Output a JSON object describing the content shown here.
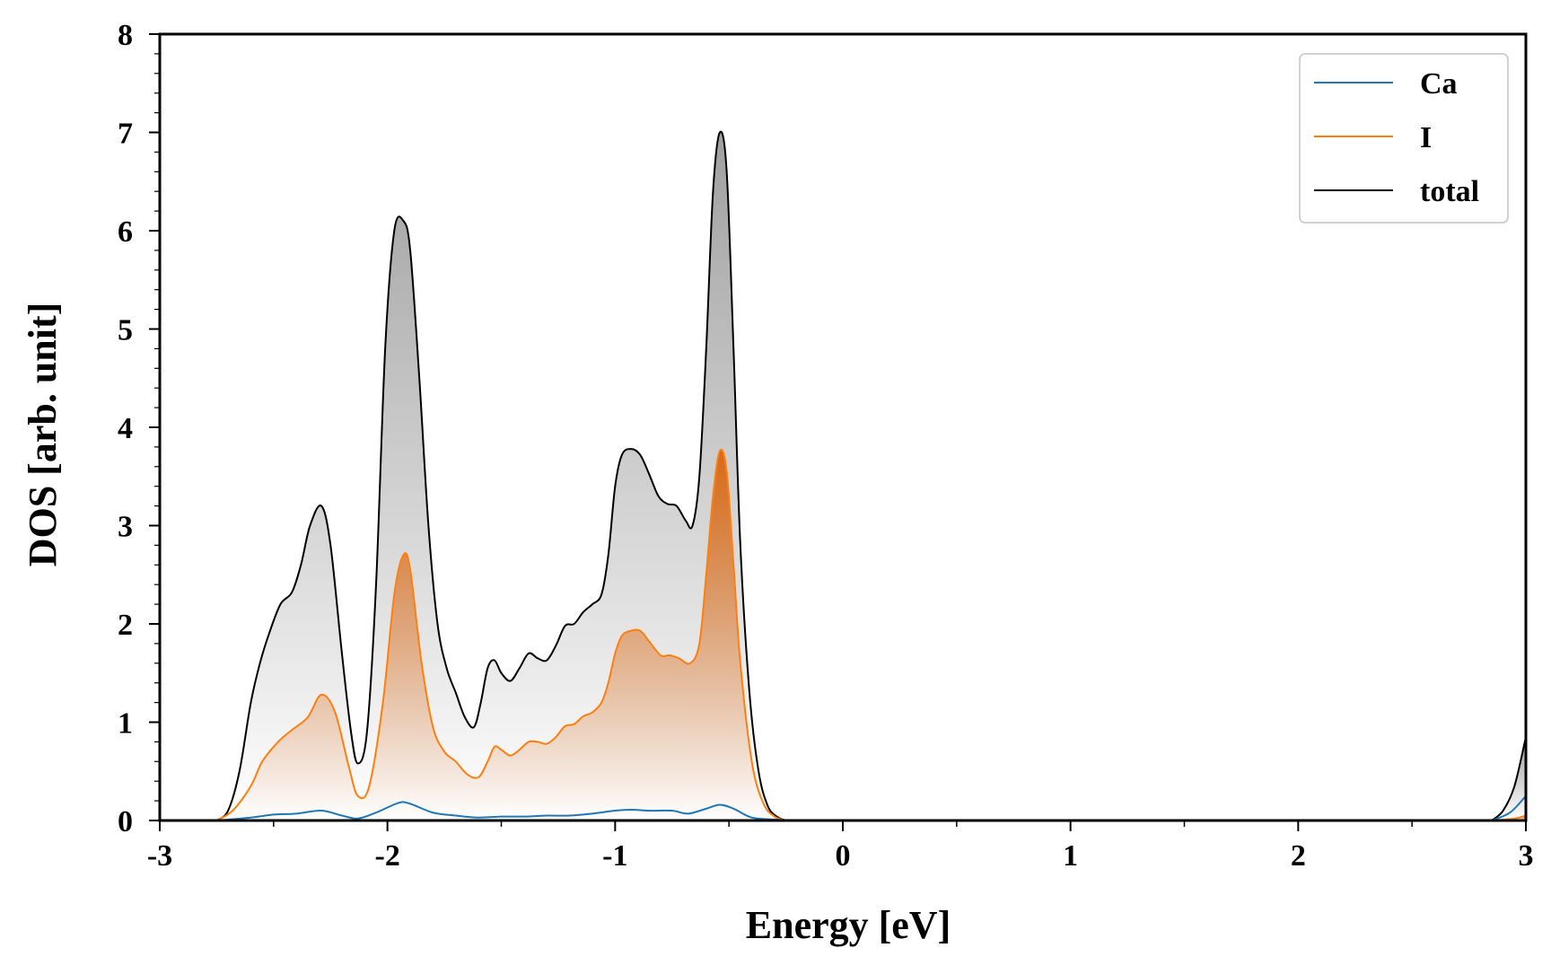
{
  "chart_data": {
    "type": "line",
    "title": "",
    "xlabel": "Energy [eV]",
    "ylabel": "DOS [arb. unit]",
    "xlim": [
      -3,
      3
    ],
    "ylim": [
      0,
      8
    ],
    "xticks": [
      -3,
      -2,
      -1,
      0,
      1,
      2,
      3
    ],
    "yticks": [
      0,
      1,
      2,
      3,
      4,
      5,
      6,
      7,
      8
    ],
    "xtick_labels": [
      "-3",
      "-2",
      "-1",
      "0",
      "1",
      "2",
      "3"
    ],
    "ytick_labels": [
      "0",
      "1",
      "2",
      "3",
      "4",
      "5",
      "6",
      "7",
      "8"
    ],
    "grid": false,
    "legend_position": "top-right",
    "legend": [
      "Ca",
      "I",
      "total"
    ],
    "colors": {
      "Ca": "#1f77b4",
      "I": "#ff7f0e",
      "total": "#000000",
      "total_fill": "#a0a0a0",
      "I_fill": "#e07a20"
    },
    "series": [
      {
        "name": "Ca",
        "x": [
          -2.75,
          -2.6,
          -2.5,
          -2.4,
          -2.29,
          -2.2,
          -2.13,
          -2.05,
          -1.95,
          -1.9,
          -1.8,
          -1.7,
          -1.6,
          -1.5,
          -1.4,
          -1.3,
          -1.2,
          -1.1,
          -1.0,
          -0.93,
          -0.85,
          -0.75,
          -0.68,
          -0.6,
          -0.54,
          -0.48,
          -0.4,
          -0.3,
          -0.25,
          2.85,
          2.93,
          3.0
        ],
        "y": [
          0.0,
          0.03,
          0.06,
          0.07,
          0.1,
          0.05,
          0.02,
          0.08,
          0.18,
          0.17,
          0.08,
          0.05,
          0.03,
          0.04,
          0.04,
          0.05,
          0.05,
          0.07,
          0.1,
          0.11,
          0.1,
          0.1,
          0.07,
          0.12,
          0.16,
          0.12,
          0.03,
          0.01,
          0.0,
          0.0,
          0.08,
          0.25
        ]
      },
      {
        "name": "I",
        "x": [
          -2.75,
          -2.68,
          -2.6,
          -2.55,
          -2.48,
          -2.42,
          -2.35,
          -2.29,
          -2.23,
          -2.17,
          -2.13,
          -2.08,
          -2.02,
          -1.97,
          -1.93,
          -1.9,
          -1.85,
          -1.8,
          -1.75,
          -1.7,
          -1.65,
          -1.6,
          -1.56,
          -1.53,
          -1.5,
          -1.46,
          -1.42,
          -1.38,
          -1.34,
          -1.3,
          -1.26,
          -1.22,
          -1.18,
          -1.14,
          -1.1,
          -1.06,
          -1.03,
          -1.0,
          -0.97,
          -0.93,
          -0.89,
          -0.85,
          -0.8,
          -0.76,
          -0.72,
          -0.67,
          -0.63,
          -0.6,
          -0.57,
          -0.54,
          -0.51,
          -0.48,
          -0.45,
          -0.4,
          -0.35,
          -0.3,
          -0.25,
          2.85,
          2.95,
          3.0
        ],
        "y": [
          0.0,
          0.1,
          0.35,
          0.6,
          0.8,
          0.92,
          1.05,
          1.28,
          1.1,
          0.55,
          0.25,
          0.35,
          1.2,
          2.3,
          2.7,
          2.55,
          1.6,
          0.95,
          0.7,
          0.6,
          0.47,
          0.44,
          0.6,
          0.75,
          0.72,
          0.66,
          0.72,
          0.8,
          0.8,
          0.78,
          0.85,
          0.96,
          0.98,
          1.06,
          1.1,
          1.2,
          1.4,
          1.7,
          1.88,
          1.93,
          1.93,
          1.82,
          1.68,
          1.68,
          1.65,
          1.6,
          1.8,
          2.5,
          3.3,
          3.76,
          3.55,
          2.6,
          1.6,
          0.6,
          0.18,
          0.04,
          0.0,
          0.0,
          0.02,
          0.05
        ]
      },
      {
        "name": "total",
        "x": [
          -2.75,
          -2.7,
          -2.65,
          -2.6,
          -2.56,
          -2.52,
          -2.47,
          -2.42,
          -2.38,
          -2.34,
          -2.29,
          -2.25,
          -2.2,
          -2.16,
          -2.13,
          -2.09,
          -2.05,
          -2.01,
          -1.97,
          -1.93,
          -1.9,
          -1.86,
          -1.82,
          -1.78,
          -1.74,
          -1.7,
          -1.66,
          -1.62,
          -1.59,
          -1.56,
          -1.53,
          -1.5,
          -1.46,
          -1.42,
          -1.38,
          -1.34,
          -1.3,
          -1.26,
          -1.22,
          -1.18,
          -1.14,
          -1.1,
          -1.06,
          -1.03,
          -1.0,
          -0.97,
          -0.93,
          -0.89,
          -0.85,
          -0.81,
          -0.77,
          -0.73,
          -0.69,
          -0.66,
          -0.63,
          -0.6,
          -0.57,
          -0.54,
          -0.51,
          -0.48,
          -0.45,
          -0.41,
          -0.37,
          -0.33,
          -0.29,
          -0.25,
          2.85,
          2.9,
          2.95,
          3.0
        ],
        "y": [
          0.0,
          0.1,
          0.5,
          1.2,
          1.6,
          1.9,
          2.2,
          2.32,
          2.6,
          3.0,
          3.2,
          2.8,
          1.7,
          0.9,
          0.58,
          0.9,
          2.4,
          4.8,
          6.0,
          6.1,
          5.8,
          4.5,
          3.0,
          2.0,
          1.55,
          1.3,
          1.05,
          0.95,
          1.2,
          1.55,
          1.63,
          1.5,
          1.42,
          1.55,
          1.7,
          1.65,
          1.63,
          1.78,
          1.98,
          2.0,
          2.12,
          2.2,
          2.3,
          2.7,
          3.4,
          3.72,
          3.78,
          3.72,
          3.52,
          3.3,
          3.22,
          3.2,
          3.05,
          3.0,
          3.5,
          4.8,
          6.4,
          7.0,
          6.6,
          4.8,
          2.8,
          1.3,
          0.5,
          0.15,
          0.04,
          0.0,
          0.0,
          0.1,
          0.35,
          0.85
        ]
      }
    ]
  }
}
